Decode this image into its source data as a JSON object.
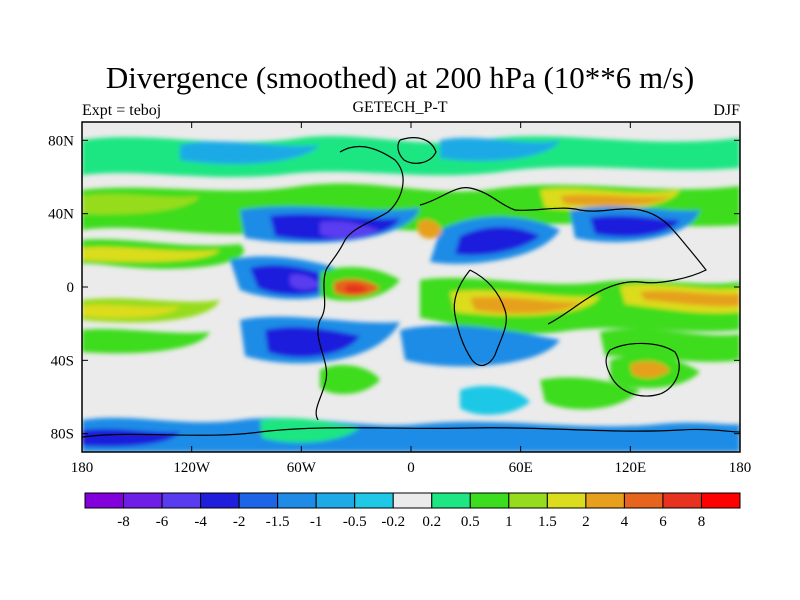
{
  "title": "Divergence (smoothed) at 200 hPa (10**6 m/s)",
  "subtitle": "GETECH_P-T",
  "left_label": "Expt = teboj",
  "right_label": "DJF",
  "chart_data": {
    "type": "heatmap",
    "title": "Divergence (smoothed) at 200 hPa (10**6 m/s)",
    "projection": "cylindrical equidistant",
    "x_ticks": [
      "180",
      "120W",
      "60W",
      "0",
      "60E",
      "120E",
      "180"
    ],
    "x_values": [
      -180,
      -120,
      -60,
      0,
      60,
      120,
      180
    ],
    "y_ticks": [
      "80N",
      "40N",
      "0",
      "40S",
      "80S"
    ],
    "y_values": [
      80,
      40,
      0,
      -40,
      -80
    ],
    "xlim": [
      -180,
      180
    ],
    "ylim": [
      -90,
      90
    ],
    "colorbar": {
      "labels": [
        "-8",
        "-6",
        "-4",
        "-2",
        "-1.5",
        "-1",
        "-0.5",
        "-0.2",
        "0.2",
        "0.5",
        "1",
        "1.5",
        "2",
        "4",
        "6",
        "8"
      ],
      "colors": [
        "#8200dc",
        "#6e1ee6",
        "#5a3cf0",
        "#1e1edc",
        "#1e64e6",
        "#1e8ce6",
        "#1eaae6",
        "#1ec8e6",
        "#ebebeb",
        "#1ee682",
        "#3cdc1e",
        "#96dc1e",
        "#dcdc1e",
        "#e6a01e",
        "#e6641e",
        "#e6321e",
        "#ff0000"
      ]
    }
  }
}
